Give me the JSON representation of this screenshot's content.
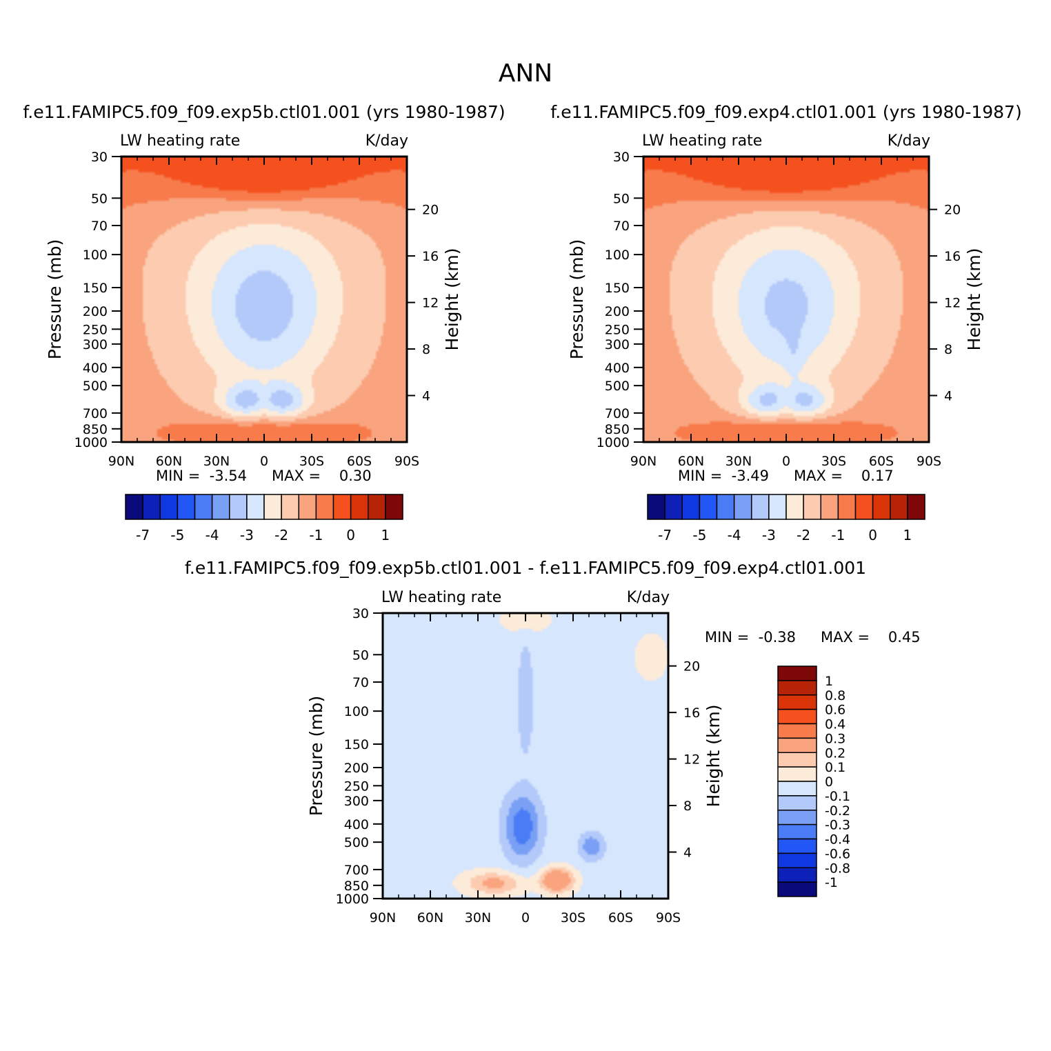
{
  "title": "ANN",
  "colors": {
    "text": "#000000",
    "frame": "#000000",
    "background": "#ffffff"
  },
  "chart_data": [
    {
      "type": "heatmap",
      "subtitle": "f.e11.FAMIPC5.f09_f09.exp5b.ctl01.001 (yrs 1980-1987)",
      "field_label": "LW heating rate",
      "units_label": "K/day",
      "ylabel": "Pressure (mb)",
      "ylabel_right": "Height (km)",
      "x_ticks": [
        "90N",
        "60N",
        "30N",
        "0",
        "30S",
        "60S",
        "90S"
      ],
      "y_ticks": [
        "30",
        "50",
        "70",
        "100",
        "150",
        "200",
        "250",
        "300",
        "400",
        "500",
        "700",
        "850",
        "1000"
      ],
      "y_right_ticks": [
        "20",
        "16",
        "12",
        "8",
        "4"
      ],
      "min_text": "MIN =  -3.54",
      "max_text": "MAX =    0.30",
      "min": -3.54,
      "max": 0.3,
      "colorbar_labels": [
        "-7",
        "-5",
        "-4",
        "-3",
        "-2",
        "-1",
        "0",
        "1"
      ],
      "colorbar_colors": [
        "#0a0a7a",
        "#0d20b8",
        "#1038e0",
        "#2357f5",
        "#4a7cf5",
        "#7aa0f5",
        "#b3c9fa",
        "#d6e6fd",
        "#fdebd9",
        "#fccbb0",
        "#f9a47e",
        "#f87b4c",
        "#f4511e",
        "#db3308",
        "#b62307",
        "#7e0707"
      ],
      "contour_levels": [
        -2.5,
        -2,
        -1.5,
        -1,
        -0.5,
        0
      ]
    },
    {
      "type": "heatmap",
      "subtitle": "f.e11.FAMIPC5.f09_f09.exp4.ctl01.001 (yrs 1980-1987)",
      "field_label": "LW heating rate",
      "units_label": "K/day",
      "ylabel": "Pressure (mb)",
      "ylabel_right": "Height (km)",
      "x_ticks": [
        "90N",
        "60N",
        "30N",
        "0",
        "30S",
        "60S",
        "90S"
      ],
      "y_ticks": [
        "30",
        "50",
        "70",
        "100",
        "150",
        "200",
        "250",
        "300",
        "400",
        "500",
        "700",
        "850",
        "1000"
      ],
      "y_right_ticks": [
        "20",
        "16",
        "12",
        "8",
        "4"
      ],
      "min_text": "MIN =  -3.49",
      "max_text": "MAX =    0.17",
      "min": -3.49,
      "max": 0.17,
      "colorbar_labels": [
        "-7",
        "-5",
        "-4",
        "-3",
        "-2",
        "-1",
        "0",
        "1"
      ],
      "colorbar_colors": [
        "#0a0a7a",
        "#0d20b8",
        "#1038e0",
        "#2357f5",
        "#4a7cf5",
        "#7aa0f5",
        "#b3c9fa",
        "#d6e6fd",
        "#fdebd9",
        "#fccbb0",
        "#f9a47e",
        "#f87b4c",
        "#f4511e",
        "#db3308",
        "#b62307",
        "#7e0707"
      ],
      "contour_levels": [
        -2.5,
        -2,
        -1.5,
        -1,
        -0.5,
        0
      ]
    },
    {
      "type": "heatmap",
      "subtitle": "f.e11.FAMIPC5.f09_f09.exp5b.ctl01.001 - f.e11.FAMIPC5.f09_f09.exp4.ctl01.001",
      "field_label": "LW heating rate",
      "units_label": "K/day",
      "ylabel": "Pressure (mb)",
      "ylabel_right": "Height (km)",
      "x_ticks": [
        "90N",
        "60N",
        "30N",
        "0",
        "30S",
        "60S",
        "90S"
      ],
      "y_ticks": [
        "30",
        "50",
        "70",
        "100",
        "150",
        "200",
        "250",
        "300",
        "400",
        "500",
        "700",
        "850",
        "1000"
      ],
      "y_right_ticks": [
        "20",
        "16",
        "12",
        "8",
        "4"
      ],
      "min_text": "MIN =  -0.38",
      "max_text": "MAX =    0.45",
      "min": -0.38,
      "max": 0.45,
      "colorbar_labels": [
        "1",
        "0.8",
        "0.6",
        "0.4",
        "0.3",
        "0.2",
        "0.1",
        "0",
        "-0.1",
        "-0.2",
        "-0.3",
        "-0.4",
        "-0.6",
        "-0.8",
        "-1"
      ],
      "colorbar_colors": [
        "#7e0707",
        "#b62307",
        "#db3308",
        "#f4511e",
        "#f87b4c",
        "#f9a47e",
        "#fccbb0",
        "#fdebd9",
        "#d6e6fd",
        "#b3c9fa",
        "#7aa0f5",
        "#4a7cf5",
        "#2357f5",
        "#1038e0",
        "#0d20b8",
        "#0a0a7a"
      ],
      "contour_levels": [
        -0.3,
        -0.2,
        -0.1,
        0,
        0.1,
        0.2
      ]
    }
  ]
}
